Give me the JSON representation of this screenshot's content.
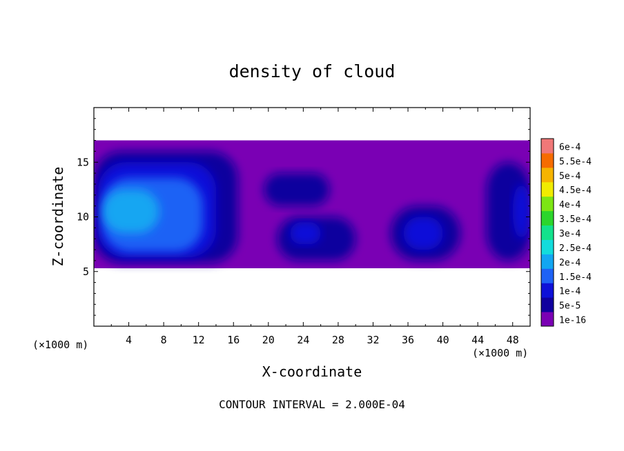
{
  "chart_data": {
    "type": "heatmap",
    "title": "density of cloud",
    "xlabel": "X-coordinate",
    "ylabel": "Z-coordinate",
    "x_unit_left": "(×1000 m)",
    "x_unit_right": "(×1000 m)",
    "xlim": [
      0,
      50
    ],
    "ylim": [
      0,
      20
    ],
    "x_ticks": [
      4,
      8,
      12,
      16,
      20,
      24,
      28,
      32,
      36,
      40,
      44,
      48
    ],
    "y_ticks": [
      5,
      10,
      15
    ],
    "footer": "CONTOUR INTERVAL = 2.000E-04",
    "colorbar": {
      "levels": [
        "1e-16",
        "5e-5",
        "1e-4",
        "1.5e-4",
        "2e-4",
        "2.5e-4",
        "3e-4",
        "3.5e-4",
        "4e-4",
        "4.5e-4",
        "5e-4",
        "5.5e-4",
        "6e-4"
      ],
      "colors": [
        "#7a00b4",
        "#10009e",
        "#0e10d8",
        "#1e62f5",
        "#12a6f2",
        "#12dcdc",
        "#12e28c",
        "#2cd62c",
        "#7ce614",
        "#f0ec00",
        "#f6b400",
        "#f66c00",
        "#f41c0c",
        "#f07878"
      ]
    },
    "regions": [
      {
        "level": 0,
        "x": [
          0,
          50
        ],
        "y": [
          5.3,
          17
        ]
      },
      {
        "level": 1,
        "x": [
          0,
          16.5
        ],
        "y": [
          5.8,
          16
        ]
      },
      {
        "level": 2,
        "x": [
          0.5,
          14
        ],
        "y": [
          6.3,
          15
        ]
      },
      {
        "level": 3,
        "x": [
          1,
          12.5
        ],
        "y": [
          6.8,
          13.6
        ]
      },
      {
        "level": 4,
        "x": [
          1,
          7.5
        ],
        "y": [
          8.5,
          12.5
        ]
      },
      {
        "level": 1,
        "x": [
          21,
          30
        ],
        "y": [
          6,
          10
        ]
      },
      {
        "level": 2,
        "x": [
          22.5,
          26
        ],
        "y": [
          7.5,
          9.5
        ]
      },
      {
        "level": 1,
        "x": [
          34,
          42
        ],
        "y": [
          6,
          11
        ]
      },
      {
        "level": 2,
        "x": [
          35.5,
          40
        ],
        "y": [
          7,
          10
        ]
      },
      {
        "level": 1,
        "x": [
          45,
          50
        ],
        "y": [
          6,
          15
        ]
      },
      {
        "level": 2,
        "x": [
          48,
          50
        ],
        "y": [
          8,
          13
        ]
      },
      {
        "level": 1,
        "x": [
          19.5,
          27
        ],
        "y": [
          11,
          14
        ]
      }
    ]
  }
}
